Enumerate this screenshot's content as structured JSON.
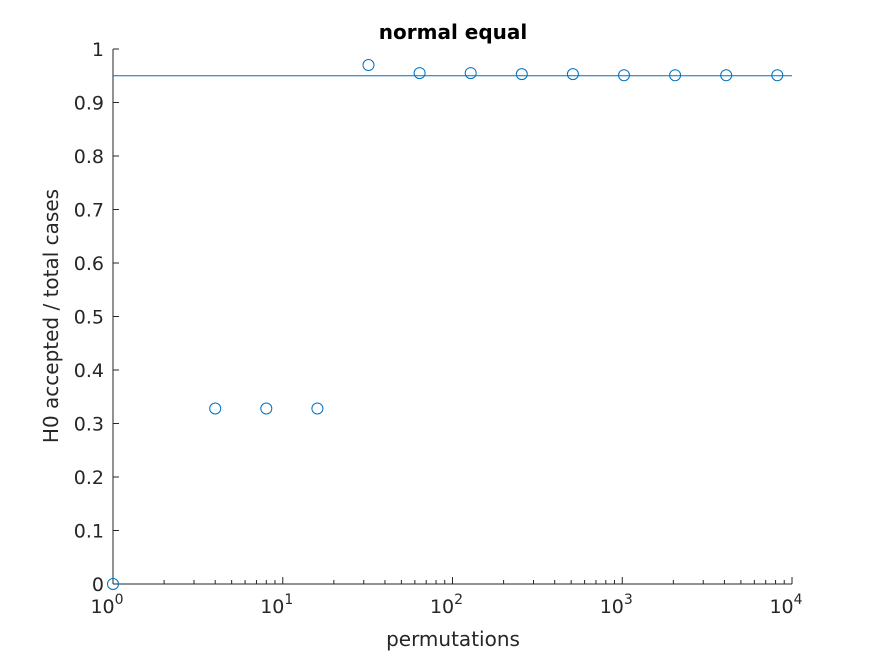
{
  "chart_data": {
    "type": "scatter",
    "title": "normal equal",
    "xlabel": "permutations",
    "ylabel": "H0 accepted / total cases",
    "x_scale": "log",
    "xlim": [
      1,
      10000
    ],
    "ylim": [
      0,
      1
    ],
    "x_ticks": [
      {
        "value": 1,
        "base": "10",
        "exp": "0"
      },
      {
        "value": 10,
        "base": "10",
        "exp": "1"
      },
      {
        "value": 100,
        "base": "10",
        "exp": "2"
      },
      {
        "value": 1000,
        "base": "10",
        "exp": "3"
      },
      {
        "value": 10000,
        "base": "10",
        "exp": "4"
      }
    ],
    "y_ticks": [
      "0",
      "0.1",
      "0.2",
      "0.3",
      "0.4",
      "0.5",
      "0.6",
      "0.7",
      "0.8",
      "0.9",
      "1"
    ],
    "grid": false,
    "reference_line": {
      "y": 0.95
    },
    "series": [
      {
        "marker": "circle-open",
        "x": [
          1,
          4,
          8,
          16,
          32,
          64,
          128,
          256,
          512,
          1024,
          2048,
          4096,
          8192
        ],
        "y": [
          0.0,
          0.328,
          0.328,
          0.328,
          0.97,
          0.955,
          0.955,
          0.953,
          0.953,
          0.951,
          0.951,
          0.951,
          0.951
        ]
      }
    ],
    "color": "#0072BD",
    "axis_color": "#262626"
  }
}
